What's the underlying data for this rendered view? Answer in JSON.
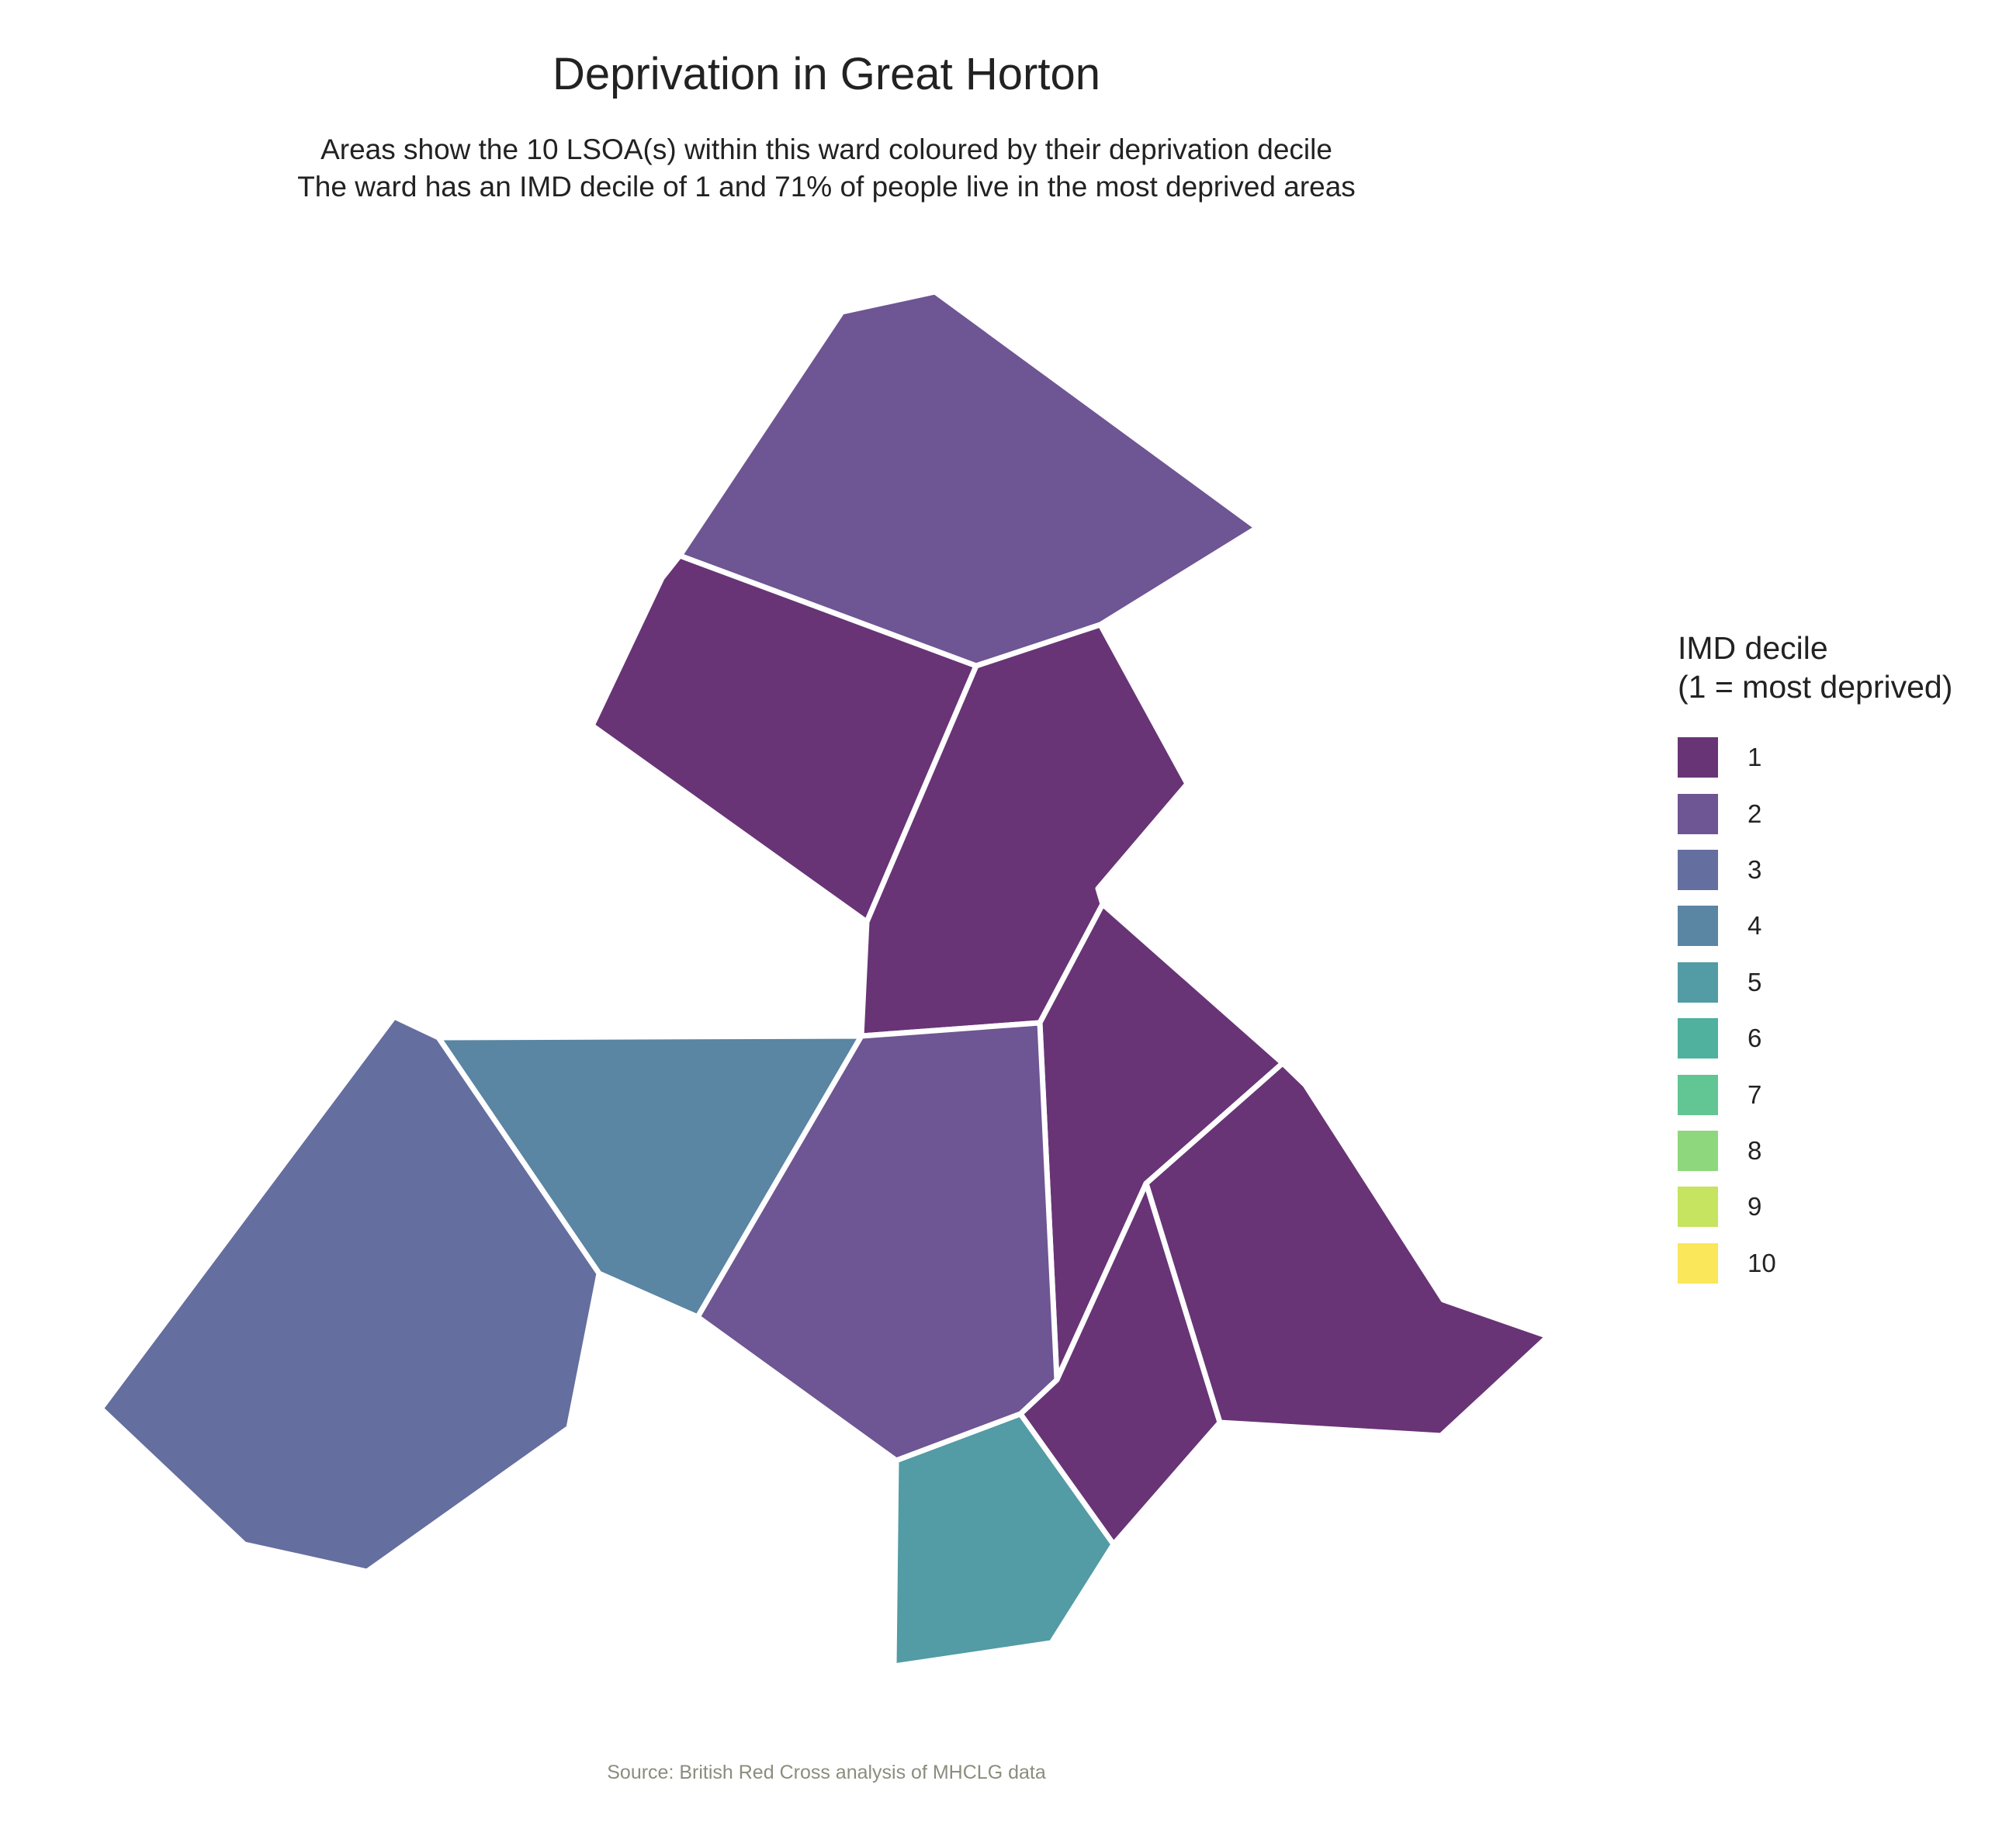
{
  "map": {
    "title": "Deprivation in Great Horton",
    "subtitle_line1": "Areas show the 10 LSOA(s) within this ward coloured by their deprivation decile",
    "subtitle_line2": "The ward has an IMD decile of 1 and 71% of people live in the most deprived areas",
    "caption": "Source: British Red Cross analysis of MHCLG data",
    "legend": {
      "title_line1": "IMD decile",
      "title_line2": "(1 = most deprived)",
      "items": [
        {
          "label": "1",
          "color": "#683476"
        },
        {
          "label": "2",
          "color": "#6e5593"
        },
        {
          "label": "3",
          "color": "#646e9f"
        },
        {
          "label": "4",
          "color": "#5a85a3"
        },
        {
          "label": "5",
          "color": "#539ba5"
        },
        {
          "label": "6",
          "color": "#4fb19e"
        },
        {
          "label": "7",
          "color": "#61c694"
        },
        {
          "label": "8",
          "color": "#8fd77c"
        },
        {
          "label": "9",
          "color": "#c6e45f"
        },
        {
          "label": "10",
          "color": "#fae75a"
        }
      ]
    },
    "areas": [
      {
        "id": "north",
        "decile": 2
      },
      {
        "id": "north-west",
        "decile": 1
      },
      {
        "id": "central-north",
        "decile": 1
      },
      {
        "id": "east-upper",
        "decile": 1
      },
      {
        "id": "east-lower",
        "decile": 1
      },
      {
        "id": "south-east-small",
        "decile": 1
      },
      {
        "id": "central",
        "decile": 2
      },
      {
        "id": "west-middle",
        "decile": 4
      },
      {
        "id": "far-west",
        "decile": 3
      },
      {
        "id": "south",
        "decile": 5
      }
    ]
  }
}
